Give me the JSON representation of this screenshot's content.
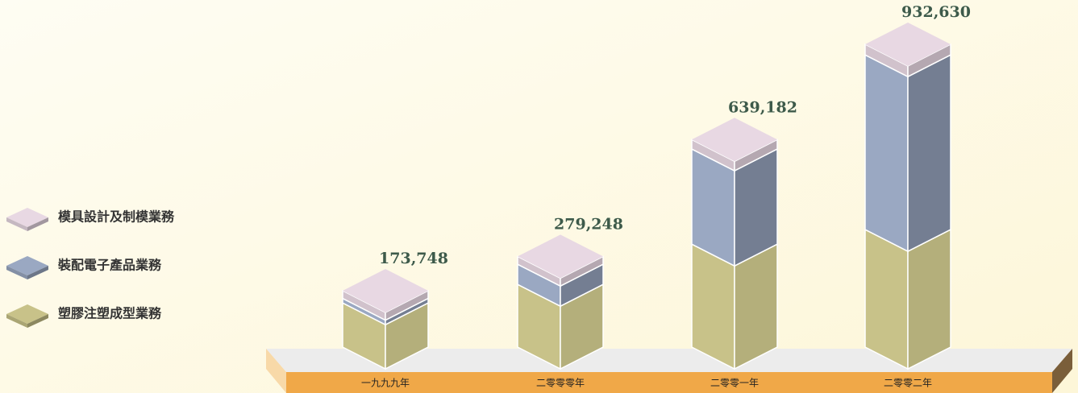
{
  "chart_data": {
    "type": "stacked-bar-3d",
    "categories": [
      "一九九九年",
      "二零零零年",
      "二零零一年",
      "二零零二年"
    ],
    "series": [
      {
        "name": "塑膠注塑成型業務",
        "color": "#c8c289",
        "values": [
          136000,
          193000,
          317000,
          362000
        ]
      },
      {
        "name": "裝配電子產品業務",
        "color": "#9aa8c2",
        "values": [
          14000,
          62000,
          293000,
          538000
        ]
      },
      {
        "name": "模具設計及制模業務",
        "color": "#e8d8e3",
        "values": [
          23748,
          24248,
          29182,
          32630
        ]
      }
    ],
    "totals": [
      173748,
      279248,
      639182,
      932630
    ],
    "total_labels": [
      "173,748",
      "279,248",
      "639,182",
      "932,630"
    ]
  }
}
